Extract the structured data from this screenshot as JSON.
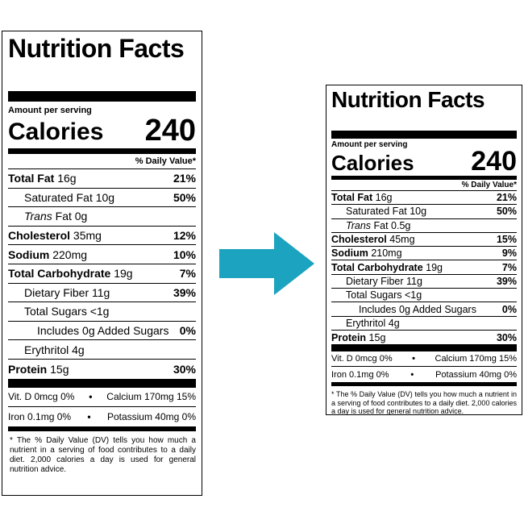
{
  "before": {
    "title": "Nutrition Facts",
    "amount_per_serving": "Amount per serving",
    "calories_label": "Calories",
    "calories_value": "240",
    "daily_value_header": "% Daily Value*",
    "rows": {
      "total_fat": {
        "label": "Total Fat",
        "amount": "16g",
        "pct": "21%"
      },
      "sat_fat": {
        "label": "Saturated Fat 10g",
        "pct": "50%"
      },
      "trans_fat": {
        "italic": "Trans",
        "label": "Fat 0g"
      },
      "cholesterol": {
        "label": "Cholesterol",
        "amount": "35mg",
        "pct": "12%"
      },
      "sodium": {
        "label": "Sodium",
        "amount": "220mg",
        "pct": "10%"
      },
      "total_carb": {
        "label": "Total Carbohydrate",
        "amount": "19g",
        "pct": "7%"
      },
      "fiber": {
        "label": "Dietary Fiber 11g",
        "pct": "39%"
      },
      "sugars": {
        "label": "Total Sugars <1g"
      },
      "added_sugars": {
        "label": "Includes 0g Added Sugars",
        "pct": "0%"
      },
      "erythritol": {
        "label": "Erythritol 4g"
      },
      "protein": {
        "label": "Protein",
        "amount": "15g",
        "pct": "30%"
      }
    },
    "vitamins": {
      "vitd": "Vit. D 0mcg 0%",
      "calcium": "Calcium 170mg 15%",
      "iron": "Iron 0.1mg 0%",
      "potassium": "Potassium 40mg 0%",
      "bullet": "•"
    },
    "footnote": "* The % Daily Value (DV) tells you how much a nutrient in a serving of food contributes to a daily diet. 2,000 calories a day is used for general nutrition advice."
  },
  "after": {
    "title": "Nutrition Facts",
    "amount_per_serving": "Amount per serving",
    "calories_label": "Calories",
    "calories_value": "240",
    "daily_value_header": "% Daily Value*",
    "rows": {
      "total_fat": {
        "label": "Total Fat",
        "amount": "16g",
        "pct": "21%"
      },
      "sat_fat": {
        "label": "Saturated Fat 10g",
        "pct": "50%"
      },
      "trans_fat": {
        "italic": "Trans",
        "label": "Fat 0.5g"
      },
      "cholesterol": {
        "label": "Cholesterol",
        "amount": "45mg",
        "pct": "15%"
      },
      "sodium": {
        "label": "Sodium",
        "amount": "210mg",
        "pct": "9%"
      },
      "total_carb": {
        "label": "Total Carbohydrate",
        "amount": "19g",
        "pct": "7%"
      },
      "fiber": {
        "label": "Dietary Fiber 11g",
        "pct": "39%"
      },
      "sugars": {
        "label": "Total Sugars <1g"
      },
      "added_sugars": {
        "label": "Includes 0g Added Sugars",
        "pct": "0%"
      },
      "erythritol": {
        "label": "Erythritol 4g"
      },
      "protein": {
        "label": "Protein",
        "amount": "15g",
        "pct": "30%"
      }
    },
    "vitamins": {
      "vitd": "Vit. D 0mcg 0%",
      "calcium": "Calcium 170mg 15%",
      "iron": "Iron 0.1mg 0%",
      "potassium": "Potassium 40mg 0%",
      "bullet": "•"
    },
    "footnote": "* The % Daily Value (DV) tells you how much a nutrient in a serving of food contributes to a daily diet. 2,000 calories a day is used for general nutrition advice."
  },
  "colors": {
    "arrow": "#1ba3bf",
    "ink": "#000000",
    "paper": "#ffffff"
  },
  "arrow_icon": "right-arrow-icon"
}
